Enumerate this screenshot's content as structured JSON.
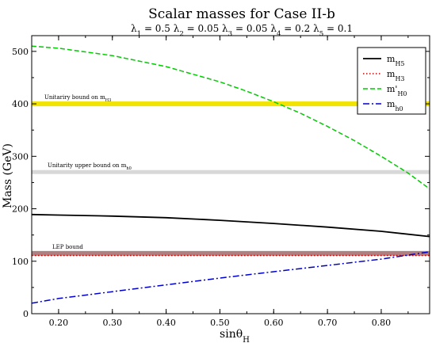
{
  "chart_data": {
    "type": "line",
    "title": "Scalar masses for Case II-b",
    "subtitle": "λ1 = 0.5   λ2 = 0.05  λ3 = 0.05  λ4 = 0.2  λ5 = 0.1",
    "xlabel": "sinθH",
    "ylabel": "Mass (GeV)",
    "xlim": [
      0.15,
      0.89
    ],
    "ylim": [
      0,
      530
    ],
    "xticks": [
      "0.20",
      "0.30",
      "0.40",
      "0.50",
      "0.60",
      "0.70",
      "0.80"
    ],
    "xtick_values": [
      0.2,
      0.3,
      0.4,
      0.5,
      0.6,
      0.7,
      0.8
    ],
    "yticks": [
      "0",
      "100",
      "200",
      "300",
      "400",
      "500"
    ],
    "ytick_values": [
      0,
      100,
      200,
      300,
      400,
      500
    ],
    "grid": false,
    "legend_position": "top-right",
    "bands": [
      {
        "label": "Unitariry bound on mH3",
        "y": 400,
        "color": "#f2e400"
      },
      {
        "label": "Unitarity upper bound on mh0",
        "y": 270,
        "color": "#d8d8d8"
      },
      {
        "label": "LEP bound",
        "y": 115,
        "color": "#b08080"
      }
    ],
    "series": [
      {
        "name": "mH5",
        "style": "solid",
        "color": "#000000",
        "x": [
          0.15,
          0.2,
          0.3,
          0.4,
          0.5,
          0.6,
          0.7,
          0.8,
          0.89
        ],
        "y": [
          189,
          188,
          186,
          183,
          178,
          172,
          165,
          157,
          147
        ]
      },
      {
        "name": "mH3",
        "style": "dotted",
        "color": "#cc0000",
        "x": [
          0.15,
          0.89
        ],
        "y": [
          111,
          111
        ]
      },
      {
        "name": "m'H0",
        "style": "dashed",
        "color": "#00cc00",
        "x": [
          0.15,
          0.2,
          0.3,
          0.4,
          0.5,
          0.55,
          0.6,
          0.65,
          0.7,
          0.75,
          0.8,
          0.85,
          0.89
        ],
        "y": [
          510,
          506,
          492,
          471,
          442,
          424,
          404,
          382,
          357,
          330,
          300,
          268,
          238
        ]
      },
      {
        "name": "mh0",
        "style": "dashdot",
        "color": "#0000cc",
        "x": [
          0.15,
          0.2,
          0.3,
          0.4,
          0.5,
          0.6,
          0.7,
          0.8,
          0.89
        ],
        "y": [
          20,
          29,
          42,
          55,
          68,
          80,
          92,
          104,
          118
        ]
      }
    ]
  }
}
